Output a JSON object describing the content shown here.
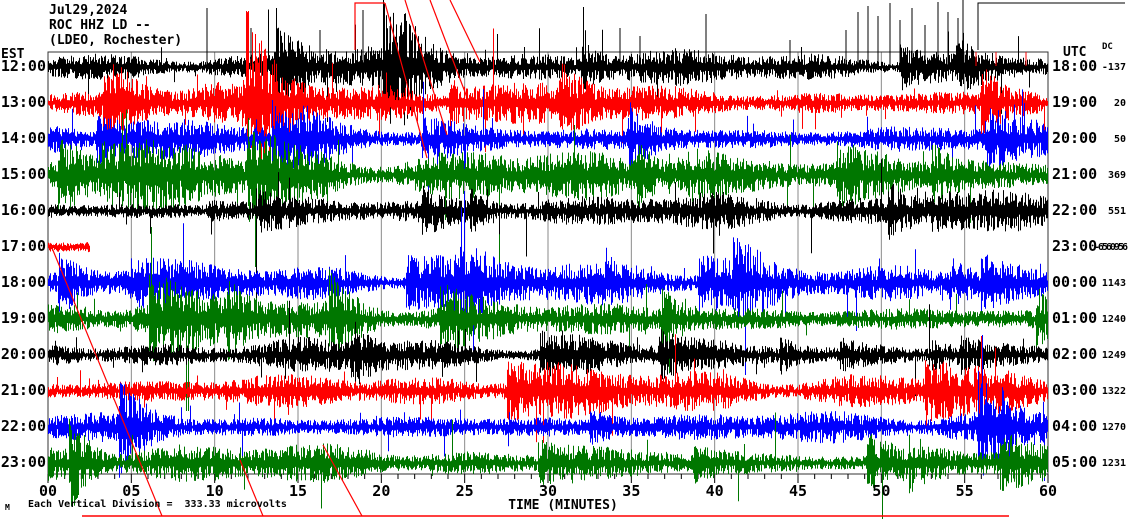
{
  "header": {
    "date_line": "Jul29,2024",
    "station_line": "ROC HHZ LD --",
    "org_line": "(LDEO, Rochester)"
  },
  "axis": {
    "left_tz": "EST",
    "right_tz": "UTC",
    "dc_label": "DC",
    "x_label": "TIME (MINUTES)",
    "x_ticks": [
      "00",
      "05",
      "10",
      "15",
      "20",
      "25",
      "30",
      "35",
      "40",
      "45",
      "50",
      "55",
      "60"
    ]
  },
  "footer": {
    "scale_note": "Each Vertical Division =  333.33 microvolts",
    "corner_glyph": "M"
  },
  "colors": {
    "grid": "#8a8a8a",
    "frame": "#333333",
    "artifact_red": "#ff0000"
  },
  "chart_data": {
    "type": "line",
    "subtype": "helicorder-seismogram",
    "title": "ROC HHZ LD -- (LDEO, Rochester) Jul29,2024",
    "xlabel": "TIME (MINUTES)",
    "x_range_minutes": [
      0,
      60
    ],
    "grid_interval_minutes": 5,
    "minor_tick_minutes": 1,
    "scale_microvolts_per_division": "333.33",
    "trace_colors_cycle": [
      "#000000",
      "#ff0000",
      "#0000ff",
      "#007700"
    ],
    "rows": [
      {
        "est": "12:00",
        "utc": "18:00",
        "dc": "-137",
        "color": "#000000",
        "amp": 10,
        "burst": 1.6,
        "active_minutes": 60,
        "note": "large clipped spikes above frame"
      },
      {
        "est": "13:00",
        "utc": "19:00",
        "dc": "20",
        "color": "#ff0000",
        "amp": 12,
        "burst": 1.2,
        "active_minutes": 60
      },
      {
        "est": "14:00",
        "utc": "20:00",
        "dc": "50",
        "color": "#0000ff",
        "amp": 12,
        "burst": 1.3,
        "active_minutes": 60
      },
      {
        "est": "15:00",
        "utc": "21:00",
        "dc": "369",
        "color": "#007700",
        "amp": 15,
        "burst": 1.2,
        "active_minutes": 60
      },
      {
        "est": "16:00",
        "utc": "22:00",
        "dc": "551",
        "color": "#000000",
        "amp": 10,
        "burst": 1.0,
        "active_minutes": 60
      },
      {
        "est": "17:00",
        "utc": "23:00",
        "dc": "-6560956",
        "dc_squeezed": true,
        "color": "#ff0000",
        "amp": 8,
        "burst": 0.8,
        "active_minutes": 2.5,
        "note": "data gap, red diagonal gap lines"
      },
      {
        "est": "18:00",
        "utc": "00:00",
        "dc": "1143",
        "color": "#0000ff",
        "amp": 12,
        "burst": 1.3,
        "active_minutes": 60
      },
      {
        "est": "19:00",
        "utc": "01:00",
        "dc": "1240",
        "color": "#007700",
        "amp": 12,
        "burst": 1.2,
        "active_minutes": 60
      },
      {
        "est": "20:00",
        "utc": "02:00",
        "dc": "1249",
        "color": "#000000",
        "amp": 9,
        "burst": 1.1,
        "active_minutes": 60
      },
      {
        "est": "21:00",
        "utc": "03:00",
        "dc": "1322",
        "color": "#ff0000",
        "amp": 12,
        "burst": 1.2,
        "active_minutes": 60
      },
      {
        "est": "22:00",
        "utc": "04:00",
        "dc": "1270",
        "color": "#0000ff",
        "amp": 12,
        "burst": 1.2,
        "active_minutes": 60
      },
      {
        "est": "23:00",
        "utc": "05:00",
        "dc": "1231",
        "color": "#007700",
        "amp": 12,
        "burst": 1.3,
        "active_minutes": 60,
        "note": "spikes extend below frame into axis area"
      }
    ]
  }
}
